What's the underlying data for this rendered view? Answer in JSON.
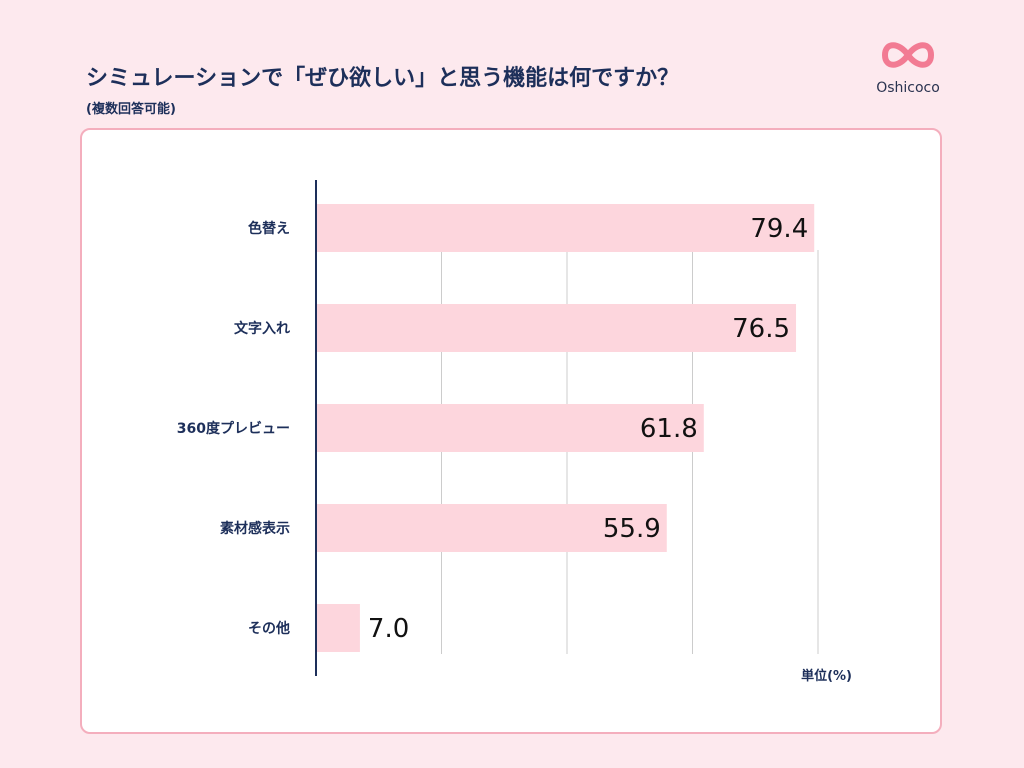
{
  "header": {
    "title": "シミュレーションで「ぜひ欲しい」と思う機能は何ですか？",
    "subtitle": "(複数回答可能)"
  },
  "logo": {
    "text": "Oshicoco",
    "icon": "infinity-heart-icon",
    "color": "#f27b93"
  },
  "chart_data": {
    "type": "bar",
    "orientation": "horizontal",
    "categories": [
      "色替え",
      "文字入れ",
      "360度プレビュー",
      "素材感表示",
      "その他"
    ],
    "values": [
      79.4,
      76.5,
      61.8,
      55.9,
      7.0
    ],
    "value_labels": [
      "79.4",
      "76.5",
      "61.8",
      "55.9",
      "7.0"
    ],
    "unit_label": "単位(%)",
    "xlim": [
      0,
      80
    ],
    "gridlines": [
      20,
      40,
      60,
      80
    ],
    "bar_color": "#fdd6dd",
    "grid": true
  }
}
